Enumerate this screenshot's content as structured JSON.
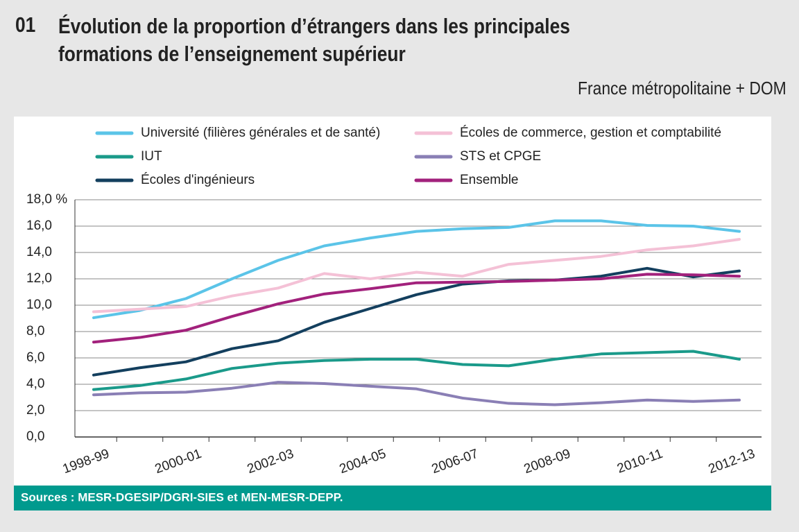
{
  "chart_data": {
    "type": "line",
    "number": "01",
    "title": "Évolution de la proportion d’étrangers dans les principales formations de l’enseignement supérieur",
    "subtitle": "France métropolitaine + DOM",
    "source": "Sources : MESR-DGESIP/DGRI-SIES et MEN-MESR-DEPP.",
    "categories": [
      "1998-99",
      null,
      "2000-01",
      null,
      "2002-03",
      null,
      "2004-05",
      null,
      "2006-07",
      null,
      "2008-09",
      null,
      "2010-11",
      null,
      "2012-13"
    ],
    "series": [
      {
        "name": "Université (filières générales et de santé)",
        "color": "#5bc4e8",
        "values": [
          9.05,
          9.6,
          10.5,
          12.0,
          13.4,
          14.5,
          15.1,
          15.6,
          15.8,
          15.9,
          16.4,
          16.4,
          16.05,
          16.0,
          15.6
        ]
      },
      {
        "name": "Écoles de commerce, gestion et comptabilité",
        "color": "#f4c1d6",
        "values": [
          9.5,
          9.7,
          9.9,
          10.7,
          11.3,
          12.4,
          12.0,
          12.5,
          12.2,
          13.1,
          13.4,
          13.7,
          14.2,
          14.5,
          15.0
        ]
      },
      {
        "name": "IUT",
        "color": "#1a9a8a",
        "values": [
          3.6,
          3.9,
          4.4,
          5.2,
          5.6,
          5.8,
          5.9,
          5.9,
          5.5,
          5.4,
          5.9,
          6.3,
          6.4,
          6.5,
          5.9
        ]
      },
      {
        "name": "STS et CPGE",
        "color": "#8a7fb5",
        "values": [
          3.2,
          3.35,
          3.4,
          3.7,
          4.15,
          4.05,
          3.85,
          3.65,
          2.95,
          2.55,
          2.45,
          2.6,
          2.8,
          2.7,
          2.8
        ]
      },
      {
        "name": "Écoles d'ingénieurs",
        "color": "#133f5e",
        "values": [
          4.7,
          5.25,
          5.7,
          6.7,
          7.3,
          8.7,
          9.75,
          10.8,
          11.6,
          11.85,
          11.9,
          12.2,
          12.8,
          12.15,
          12.6
        ]
      },
      {
        "name": "Ensemble",
        "color": "#a2217c",
        "values": [
          7.2,
          7.55,
          8.1,
          9.15,
          10.1,
          10.85,
          11.25,
          11.7,
          11.75,
          11.8,
          11.9,
          12.0,
          12.35,
          12.3,
          12.2
        ]
      }
    ],
    "ylim": [
      0,
      18
    ],
    "yticks": [
      {
        "value": 0,
        "label": "0,0"
      },
      {
        "value": 2,
        "label": "2,0"
      },
      {
        "value": 4,
        "label": "4,0"
      },
      {
        "value": 6,
        "label": "6,0"
      },
      {
        "value": 8,
        "label": "8,0"
      },
      {
        "value": 10,
        "label": "10,0"
      },
      {
        "value": 12,
        "label": "12,0"
      },
      {
        "value": 14,
        "label": "14,0"
      },
      {
        "value": 16,
        "label": "16,0"
      },
      {
        "value": 18,
        "label": "18,0 %"
      }
    ],
    "grid": true,
    "legend": "top"
  }
}
